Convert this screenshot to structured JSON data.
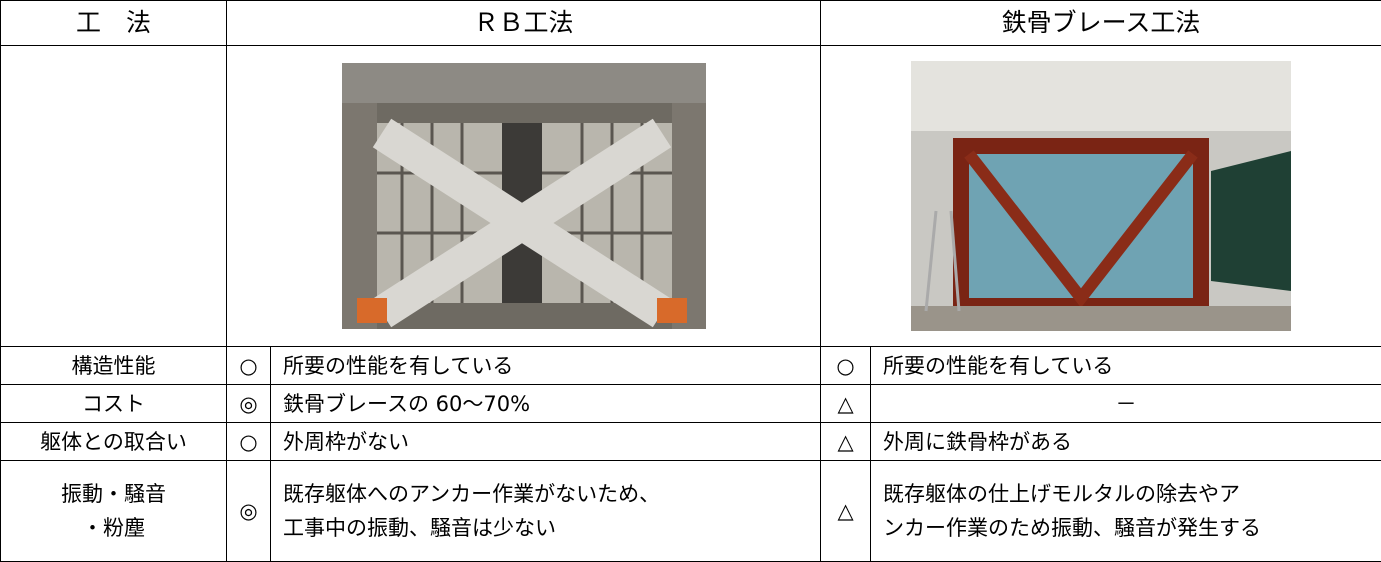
{
  "header": [
    "工　法",
    "ＲＢ工法",
    "鉄骨ブレース工法"
  ],
  "rows": [
    {
      "item": [
        "構造性能"
      ],
      "rb_mark": "○",
      "rb_text": [
        "所要の性能を有している"
      ],
      "steel_mark": "○",
      "steel_text": [
        "所要の性能を有している"
      ]
    },
    {
      "item": [
        "コスト"
      ],
      "rb_mark": "◎",
      "rb_text": [
        "鉄骨ブレースの 60〜70%"
      ],
      "steel_mark": "△",
      "steel_text": [
        "－"
      ]
    },
    {
      "item": [
        "躯体との取合い"
      ],
      "rb_mark": "○",
      "rb_text": [
        "外周枠がない"
      ],
      "steel_mark": "△",
      "steel_text": [
        "外周に鉄骨枠がある"
      ]
    },
    {
      "item": [
        "振動・騒音",
        "・粉塵"
      ],
      "rb_mark": "◎",
      "rb_text": [
        "既存躯体へのアンカー作業がないため、",
        "工事中の振動、騒音は少ない"
      ],
      "steel_mark": "△",
      "steel_text": [
        "既存躯体の仕上げモルタルの除去やア",
        "ンカー作業のため振動、騒音が発生する"
      ]
    }
  ]
}
